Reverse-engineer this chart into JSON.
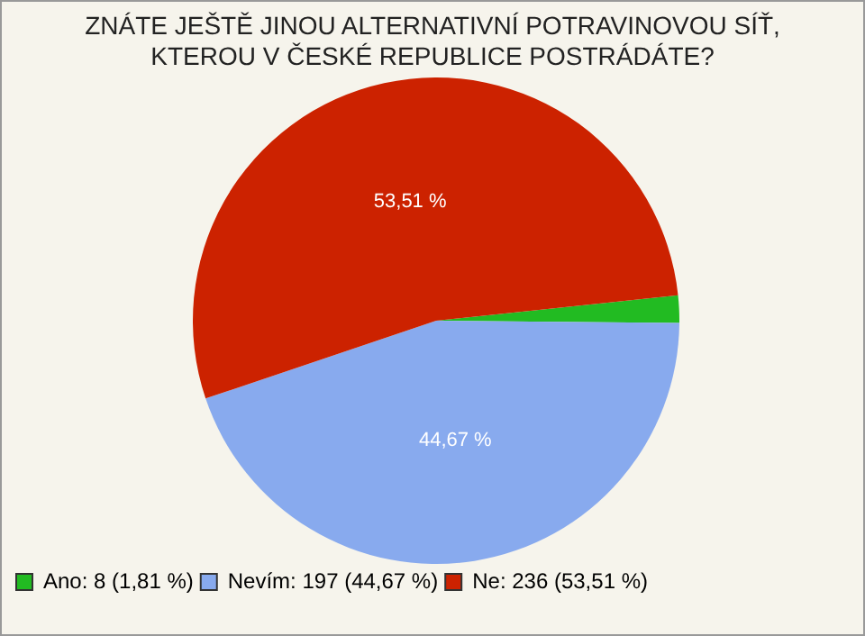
{
  "chart_data": {
    "type": "pie",
    "title": "ZNÁTE JEŠTĚ JINOU ALTERNATIVNÍ POTRAVINOVOU SÍŤ, KTEROU V ČESKÉ REPUBLICE POSTRÁDÁTE?",
    "categories": [
      "Ano: 8 (1,81 %)",
      "Nevím: 197 (44,67 %)",
      "Ne: 236 (53,51 %)"
    ],
    "values": [
      1.81,
      44.67,
      53.51
    ],
    "colors": [
      "#22bb22",
      "#88aaee",
      "#cc2200"
    ],
    "value_labels": [
      null,
      "44,67 %",
      "53,51 %"
    ],
    "legend": "bottom left"
  }
}
